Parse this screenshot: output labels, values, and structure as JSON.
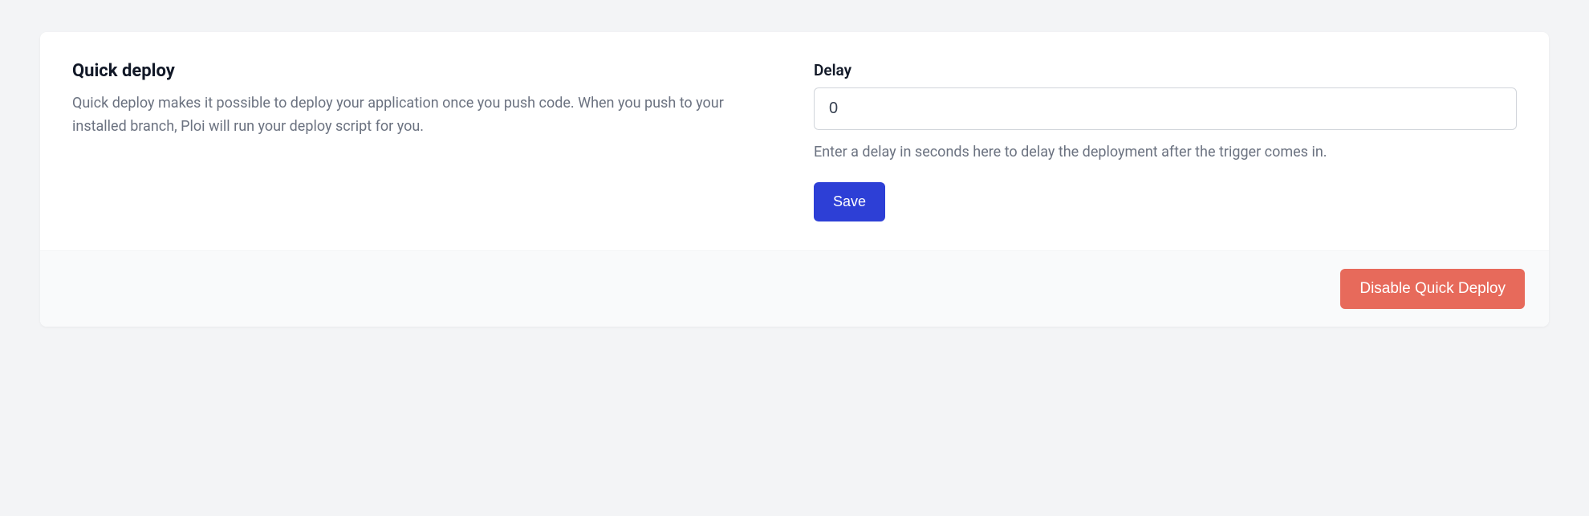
{
  "quickDeploy": {
    "title": "Quick deploy",
    "description": "Quick deploy makes it possible to deploy your application once you push code. When you push to your installed branch, Ploi will run your deploy script for you.",
    "delay": {
      "label": "Delay",
      "value": "0",
      "help": "Enter a delay in seconds here to delay the deployment after the trigger comes in."
    },
    "saveLabel": "Save",
    "disableLabel": "Disable Quick Deploy"
  },
  "colors": {
    "background": "#f3f4f6",
    "cardBackground": "#ffffff",
    "footerBackground": "#f9fafb",
    "textPrimary": "#111827",
    "textSecondary": "#6b7280",
    "border": "#d1d5db",
    "primaryButton": "#2d3fd6",
    "dangerButton": "#e76a5b",
    "buttonText": "#ffffff"
  }
}
